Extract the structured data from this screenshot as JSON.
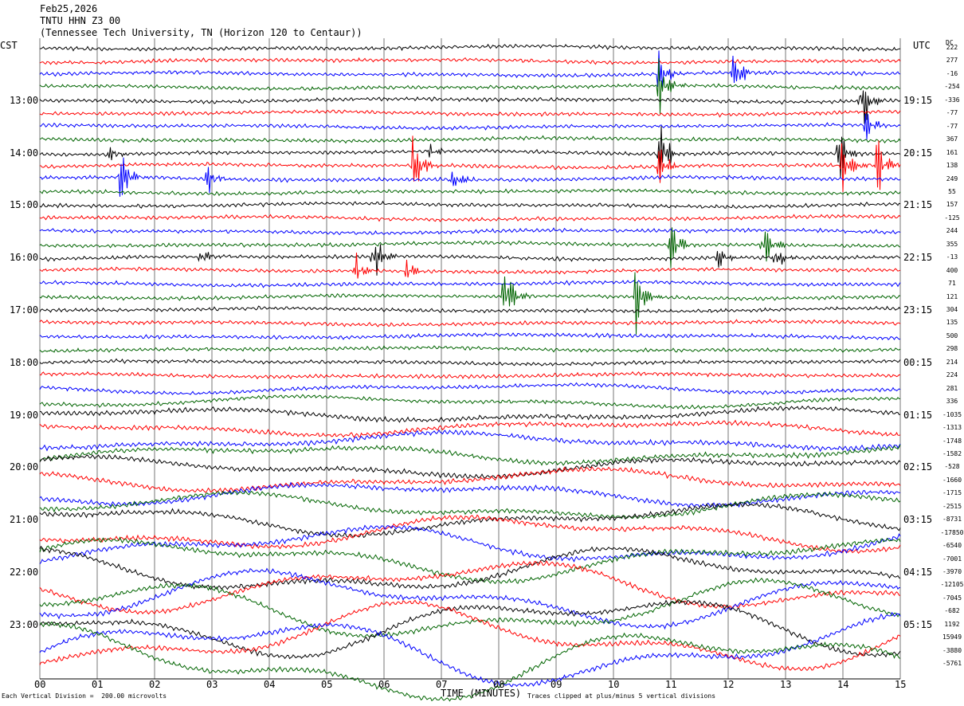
{
  "header": {
    "date": "Feb25,2026",
    "station": "TNTU HHN Z3 00",
    "location": "(Tennessee Tech University, TN (Horizon 120 to Centaur))"
  },
  "axis": {
    "left_zone": "CST",
    "right_zone": "UTC",
    "dc_label": "DC",
    "xlabel": "TIME (MINUTES)",
    "x_ticks": [
      "00",
      "01",
      "02",
      "03",
      "04",
      "05",
      "06",
      "07",
      "08",
      "09",
      "10",
      "11",
      "12",
      "13",
      "14",
      "15"
    ]
  },
  "footer": {
    "scale_note": "Each Vertical Division =  200.00 microvolts",
    "clip_note": "Traces clipped at plus/minus 5 vertical divisions"
  },
  "colors": {
    "trace_cycle": [
      "#000000",
      "#ff0000",
      "#0000ff",
      "#006400"
    ],
    "grid": "#000000",
    "background": "#ffffff"
  },
  "chart_data": {
    "type": "line",
    "title": "TNTU HHN Z3 00",
    "xlabel": "TIME (MINUTES)",
    "xlim": [
      0,
      15
    ],
    "rows_per_hour": 4,
    "minutes_per_row": 15,
    "left_hour_labels": [
      "13:00",
      "14:00",
      "15:00",
      "16:00",
      "17:00",
      "18:00",
      "19:00",
      "20:00",
      "21:00",
      "22:00",
      "23:00"
    ],
    "right_hour_labels": [
      "19:15",
      "20:15",
      "21:15",
      "22:15",
      "23:15",
      "00:15",
      "01:15",
      "02:15",
      "03:15",
      "04:15",
      "05:15"
    ],
    "trace_dc_offsets": [
      "222",
      "277",
      "-16",
      "-254",
      "-336",
      "-77",
      "-77",
      "367",
      "161",
      "138",
      "249",
      "55",
      "157",
      "-125",
      "244",
      "355",
      "-13",
      "400",
      "71",
      "121",
      "304",
      "135",
      "500",
      "298",
      "214",
      "224",
      "281",
      "336",
      "-1035",
      "-1313",
      "-1748",
      "-1582",
      "-528",
      "-1660",
      "-1715",
      "-2515",
      "-8731",
      "-17850",
      "-6540",
      "-7001",
      "-3970",
      "-12105",
      "-7045",
      "-682",
      "1192",
      "15949",
      "-3880",
      "-5761"
    ],
    "events": [
      {
        "trace": 2,
        "minute": 10.8,
        "amp": 2.5
      },
      {
        "trace": 2,
        "minute": 12.1,
        "amp": 2.5
      },
      {
        "trace": 3,
        "minute": 10.8,
        "amp": 2.8
      },
      {
        "trace": 4,
        "minute": 14.3,
        "amp": 3.5
      },
      {
        "trace": 6,
        "minute": 14.4,
        "amp": 1.5
      },
      {
        "trace": 8,
        "minute": 1.2,
        "amp": 1.0
      },
      {
        "trace": 8,
        "minute": 6.8,
        "amp": 0.8
      },
      {
        "trace": 8,
        "minute": 10.8,
        "amp": 3.5
      },
      {
        "trace": 8,
        "minute": 13.9,
        "amp": 3.0
      },
      {
        "trace": 9,
        "minute": 6.5,
        "amp": 3.5
      },
      {
        "trace": 9,
        "minute": 10.8,
        "amp": 2.0
      },
      {
        "trace": 9,
        "minute": 14.0,
        "amp": 3.0
      },
      {
        "trace": 9,
        "minute": 14.6,
        "amp": 3.0
      },
      {
        "trace": 10,
        "minute": 1.4,
        "amp": 3.5
      },
      {
        "trace": 10,
        "minute": 2.9,
        "amp": 1.5
      },
      {
        "trace": 10,
        "minute": 7.2,
        "amp": 1.5
      },
      {
        "trace": 15,
        "minute": 11.0,
        "amp": 2.5
      },
      {
        "trace": 15,
        "minute": 12.6,
        "amp": 3.0
      },
      {
        "trace": 16,
        "minute": 5.8,
        "amp": 3.0
      },
      {
        "trace": 16,
        "minute": 2.8,
        "amp": 1.0
      },
      {
        "trace": 16,
        "minute": 11.8,
        "amp": 1.2
      },
      {
        "trace": 16,
        "minute": 12.8,
        "amp": 1.5
      },
      {
        "trace": 17,
        "minute": 5.5,
        "amp": 1.5
      },
      {
        "trace": 17,
        "minute": 6.4,
        "amp": 1.2
      },
      {
        "trace": 19,
        "minute": 8.1,
        "amp": 4.0
      },
      {
        "trace": 19,
        "minute": 10.4,
        "amp": 4.0
      }
    ]
  }
}
